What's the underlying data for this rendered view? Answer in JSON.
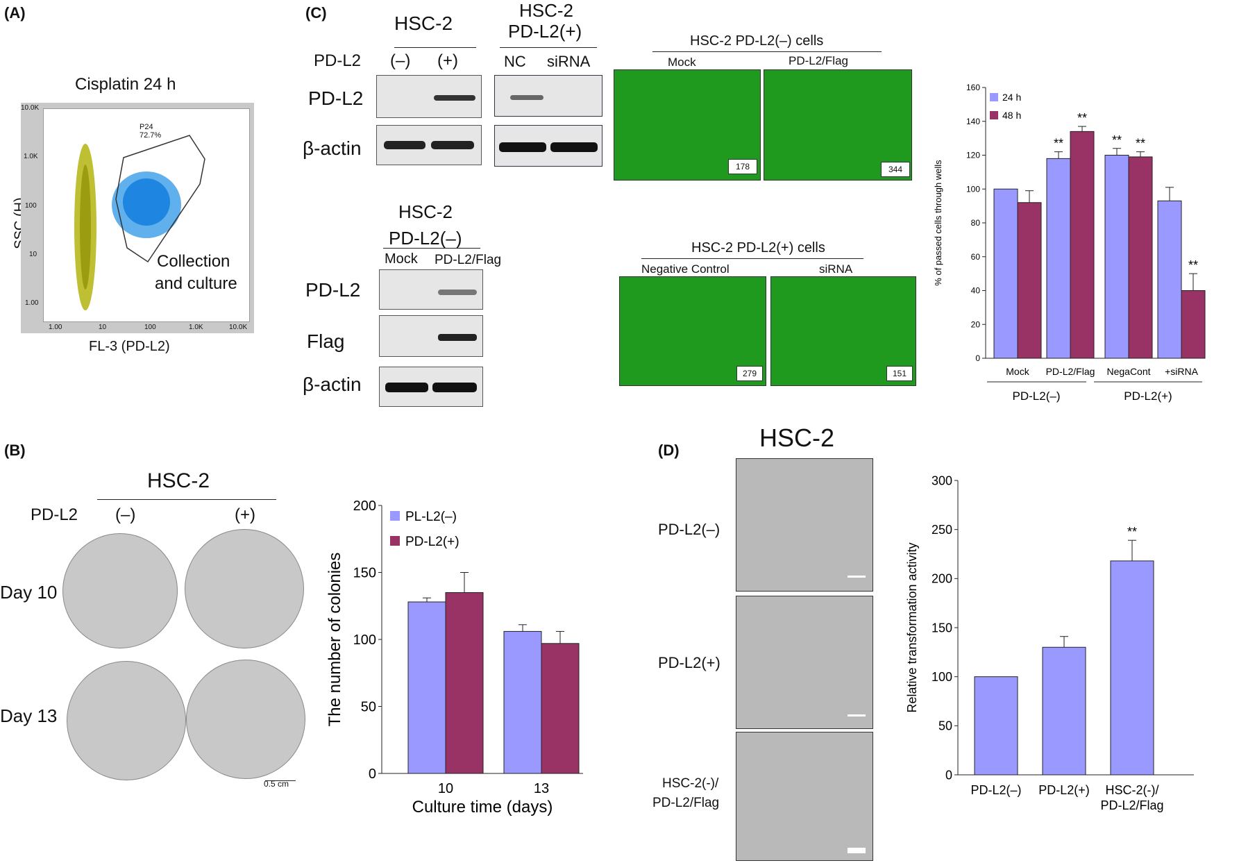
{
  "panels": {
    "A": "(A)",
    "B": "(B)",
    "C": "(C)",
    "D": "(D)"
  },
  "panelA": {
    "title": "Cisplatin 24 h",
    "ylabel": "SSC (H)",
    "xlabel": "FL-3 (PD-L2)",
    "gate_name": "P24",
    "gate_pct": "72.7%",
    "gate_note_1": "Collection",
    "gate_note_2": "and culture",
    "yticks": [
      "10.0K",
      "1.0K",
      "100",
      "10",
      "1.00"
    ],
    "xticks": [
      "1.00",
      "10",
      "100",
      "1.0K",
      "10.0K"
    ]
  },
  "panelC": {
    "hsc2": "HSC-2",
    "hsc2_pos_1": "HSC-2",
    "hsc2_pos_2": "PD-L2(+)",
    "pdl2_row": "PD-L2",
    "neg": "(–)",
    "pos": "(+)",
    "nc": "NC",
    "sirna": "siRNA",
    "blot_pdl2": "PD-L2",
    "blot_actin": "β-actin",
    "hsc2_neg_1": "HSC-2",
    "hsc2_neg_2": "PD-L2(–)",
    "mock": "Mock",
    "pdl2flag": "PD-L2/Flag",
    "blot_flag": "Flag",
    "micro_top_title": "HSC-2 PD-L2(–) cells",
    "micro_top_left": "Mock",
    "micro_top_right": "PD-L2/Flag",
    "micro_top_n1": "178",
    "micro_top_n2": "344",
    "micro_bot_title": "HSC-2 PD-L2(+) cells",
    "micro_bot_left": "Negative Control",
    "micro_bot_right": "siRNA",
    "micro_bot_n1": "279",
    "micro_bot_n2": "151"
  },
  "panelB": {
    "title": "HSC-2",
    "pdl2": "PD-L2",
    "neg": "(–)",
    "pos": "(+)",
    "day10": "Day 10",
    "day13": "Day 13",
    "scale": "0.5 cm"
  },
  "panelD": {
    "title": "HSC-2",
    "row1": "PD-L2(–)",
    "row2": "PD-L2(+)",
    "row3a": "HSC-2(-)/",
    "row3b": "PD-L2/Flag"
  },
  "chart_data": [
    {
      "id": "migration",
      "type": "bar",
      "ylabel": "% of passed cells through wells",
      "ylim": [
        0,
        160
      ],
      "yticks": [
        0,
        20,
        40,
        60,
        80,
        100,
        120,
        140,
        160
      ],
      "categories": [
        "Mock",
        "PD-L2/Flag",
        "NegaCont",
        "+siRNA"
      ],
      "groups": [
        "PD-L2(–)",
        "PD-L2(+)"
      ],
      "series": [
        {
          "name": "24 h",
          "color": "#9999ff",
          "values": [
            100,
            118,
            120,
            93
          ],
          "errors": [
            0,
            4,
            4,
            8
          ],
          "sig": [
            "",
            "**",
            "**",
            ""
          ]
        },
        {
          "name": "48 h",
          "color": "#993366",
          "values": [
            92,
            134,
            119,
            40
          ],
          "errors": [
            7,
            3,
            3,
            10
          ],
          "sig": [
            "",
            "**",
            "**",
            "**"
          ]
        }
      ]
    },
    {
      "id": "colonies",
      "type": "bar",
      "xlabel": "Culture time (days)",
      "ylabel": "The number of colonies",
      "ylim": [
        0,
        200
      ],
      "yticks": [
        0,
        50,
        100,
        150,
        200
      ],
      "categories": [
        "10",
        "13"
      ],
      "series": [
        {
          "name": "PL-L2(–)",
          "color": "#9999ff",
          "values": [
            128,
            106
          ],
          "errors": [
            3,
            5
          ]
        },
        {
          "name": "PD-L2(+)",
          "color": "#993366",
          "values": [
            135,
            97
          ],
          "errors": [
            15,
            9
          ]
        }
      ]
    },
    {
      "id": "transformation",
      "type": "bar",
      "ylabel": "Relative transformation activity",
      "ylim": [
        0,
        300
      ],
      "yticks": [
        0,
        50,
        100,
        150,
        200,
        250,
        300
      ],
      "categories": [
        "PD-L2(–)",
        "PD-L2(+)",
        "HSC-2(-)/ PD-L2/Flag"
      ],
      "series": [
        {
          "color": "#9999ff",
          "values": [
            100,
            130,
            218
          ],
          "errors": [
            0,
            11,
            21
          ],
          "sig": [
            "",
            "",
            "**"
          ]
        }
      ]
    }
  ]
}
